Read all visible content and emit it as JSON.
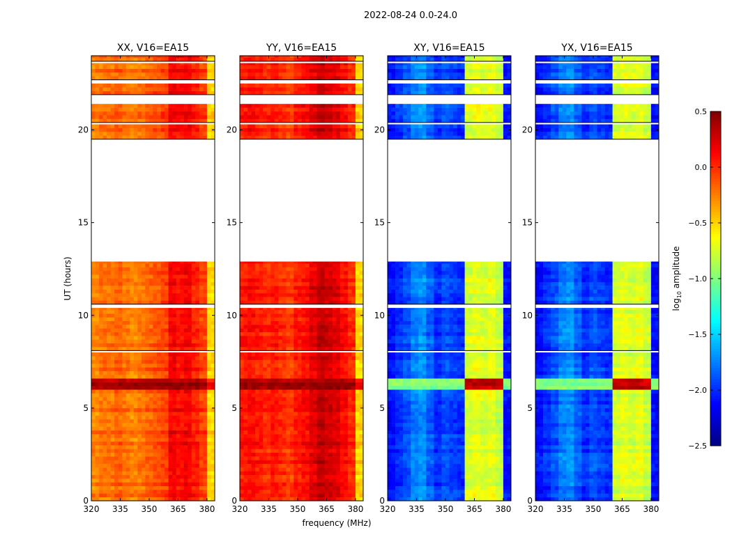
{
  "chart_data": {
    "type": "heatmap",
    "title": "2022-08-24 0.0-24.0",
    "xlabel": "frequency (MHz)",
    "ylabel": "UT (hours)",
    "xlim": [
      320,
      384
    ],
    "ylim": [
      0,
      24
    ],
    "xticks": [
      "320",
      "335",
      "350",
      "365",
      "380"
    ],
    "xtick_values": [
      320,
      335,
      350,
      365,
      380
    ],
    "yticks": [
      "0",
      "5",
      "10",
      "15",
      "20"
    ],
    "ytick_values": [
      0,
      5,
      10,
      15,
      20
    ],
    "colorbar": {
      "label_prefix": "log",
      "label_sub": "10",
      "label_suffix": " amplitude",
      "range": [
        -2.5,
        0.5
      ],
      "ticks": [
        "0.5",
        "0.0",
        "−0.5",
        "−1.0",
        "−1.5",
        "−2.0",
        "−2.5"
      ],
      "tick_values": [
        0.5,
        0.0,
        -0.5,
        -1.0,
        -1.5,
        -2.0,
        -2.5
      ],
      "colormap": "jet"
    },
    "freq_bin_start_mhz": [
      320,
      324,
      328,
      332,
      336,
      340,
      344,
      348,
      352,
      356,
      360,
      364,
      368,
      372,
      376,
      380
    ],
    "time_segments_with_data": [
      [
        0,
        8.0
      ],
      [
        8.1,
        10.4
      ],
      [
        10.6,
        12.9
      ],
      [
        19.5,
        20.3
      ],
      [
        20.4,
        21.4
      ],
      [
        21.9,
        22.5
      ],
      [
        22.7,
        23.6
      ],
      [
        23.7,
        24
      ]
    ],
    "panels": [
      {
        "title": "XX, V16=EA15",
        "profile": [
          -0.25,
          -0.2,
          -0.2,
          -0.15,
          -0.2,
          -0.25,
          -0.2,
          -0.15,
          -0.1,
          -0.05,
          0.15,
          0.1,
          0.15,
          0.05,
          -0.05,
          -0.5
        ],
        "event_times": [
          5.9,
          6.5
        ],
        "event_profile": [
          0.35,
          0.35,
          0.35,
          0.35,
          0.35,
          0.35,
          0.35,
          0.35,
          0.35,
          0.35,
          0.4,
          0.4,
          0.4,
          0.4,
          0.35,
          0.1
        ]
      },
      {
        "title": "YY, V16=EA15",
        "profile": [
          0.05,
          0.1,
          0.05,
          0.0,
          0.05,
          0.0,
          -0.05,
          0.05,
          0.1,
          0.2,
          0.3,
          0.25,
          0.2,
          0.1,
          0.0,
          -0.5
        ],
        "event_times": [
          5.9,
          6.5
        ],
        "event_profile": [
          0.4,
          0.4,
          0.4,
          0.4,
          0.4,
          0.4,
          0.4,
          0.4,
          0.4,
          0.4,
          0.45,
          0.45,
          0.45,
          0.45,
          0.4,
          0.2
        ]
      },
      {
        "title": "XY, V16=EA15",
        "profile": [
          -2.1,
          -2.0,
          -1.9,
          -1.75,
          -1.7,
          -1.85,
          -2.0,
          -1.9,
          -1.95,
          -2.0,
          -0.75,
          -0.7,
          -0.75,
          -0.7,
          -0.8,
          -2.1
        ],
        "event_times": [
          5.9,
          6.5
        ],
        "event_profile": [
          -1.0,
          -1.0,
          -1.0,
          -1.0,
          -1.0,
          -1.0,
          -1.0,
          -1.0,
          -1.0,
          -1.0,
          0.3,
          0.3,
          0.3,
          0.3,
          0.25,
          -1.0
        ]
      },
      {
        "title": "YX, V16=EA15",
        "profile": [
          -2.1,
          -2.0,
          -1.9,
          -1.75,
          -1.7,
          -1.85,
          -2.0,
          -1.9,
          -1.95,
          -2.0,
          -0.75,
          -0.7,
          -0.75,
          -0.7,
          -0.8,
          -2.1
        ],
        "event_times": [
          5.9,
          6.5
        ],
        "event_profile": [
          -1.0,
          -1.0,
          -1.0,
          -1.0,
          -1.0,
          -1.0,
          -1.0,
          -1.0,
          -1.0,
          -1.0,
          0.3,
          0.3,
          0.3,
          0.3,
          0.25,
          -1.0
        ]
      }
    ]
  }
}
